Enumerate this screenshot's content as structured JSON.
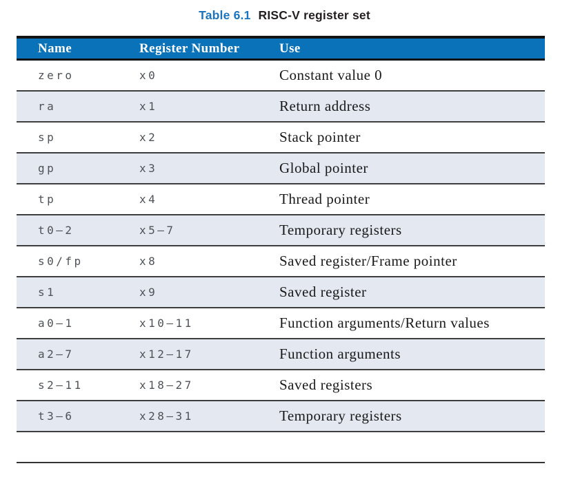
{
  "title": {
    "label": "Table 6.1",
    "caption": "RISC-V register set"
  },
  "colors": {
    "title_accent": "#1c75bc",
    "header_bg": "#0a72b8",
    "row_alt_bg": "#e3e8f1",
    "row_separator": "#3d3d3d"
  },
  "table": {
    "columns": [
      "Name",
      "Register Number",
      "Use"
    ],
    "rows": [
      {
        "name": "zero",
        "number": "x0",
        "use": "Constant value 0"
      },
      {
        "name": "ra",
        "number": "x1",
        "use": "Return address"
      },
      {
        "name": "sp",
        "number": "x2",
        "use": "Stack pointer"
      },
      {
        "name": "gp",
        "number": "x3",
        "use": "Global pointer"
      },
      {
        "name": "tp",
        "number": "x4",
        "use": "Thread pointer"
      },
      {
        "name": "t0–2",
        "number": "x5–7",
        "use": "Temporary registers"
      },
      {
        "name": "s0/fp",
        "number": "x8",
        "use": "Saved register/Frame pointer"
      },
      {
        "name": "s1",
        "number": "x9",
        "use": "Saved register"
      },
      {
        "name": "a0–1",
        "number": "x10–11",
        "use": "Function arguments/Return values"
      },
      {
        "name": "a2–7",
        "number": "x12–17",
        "use": "Function arguments"
      },
      {
        "name": "s2–11",
        "number": "x18–27",
        "use": "Saved registers"
      },
      {
        "name": "t3–6",
        "number": "x28–31",
        "use": "Temporary registers"
      }
    ]
  }
}
